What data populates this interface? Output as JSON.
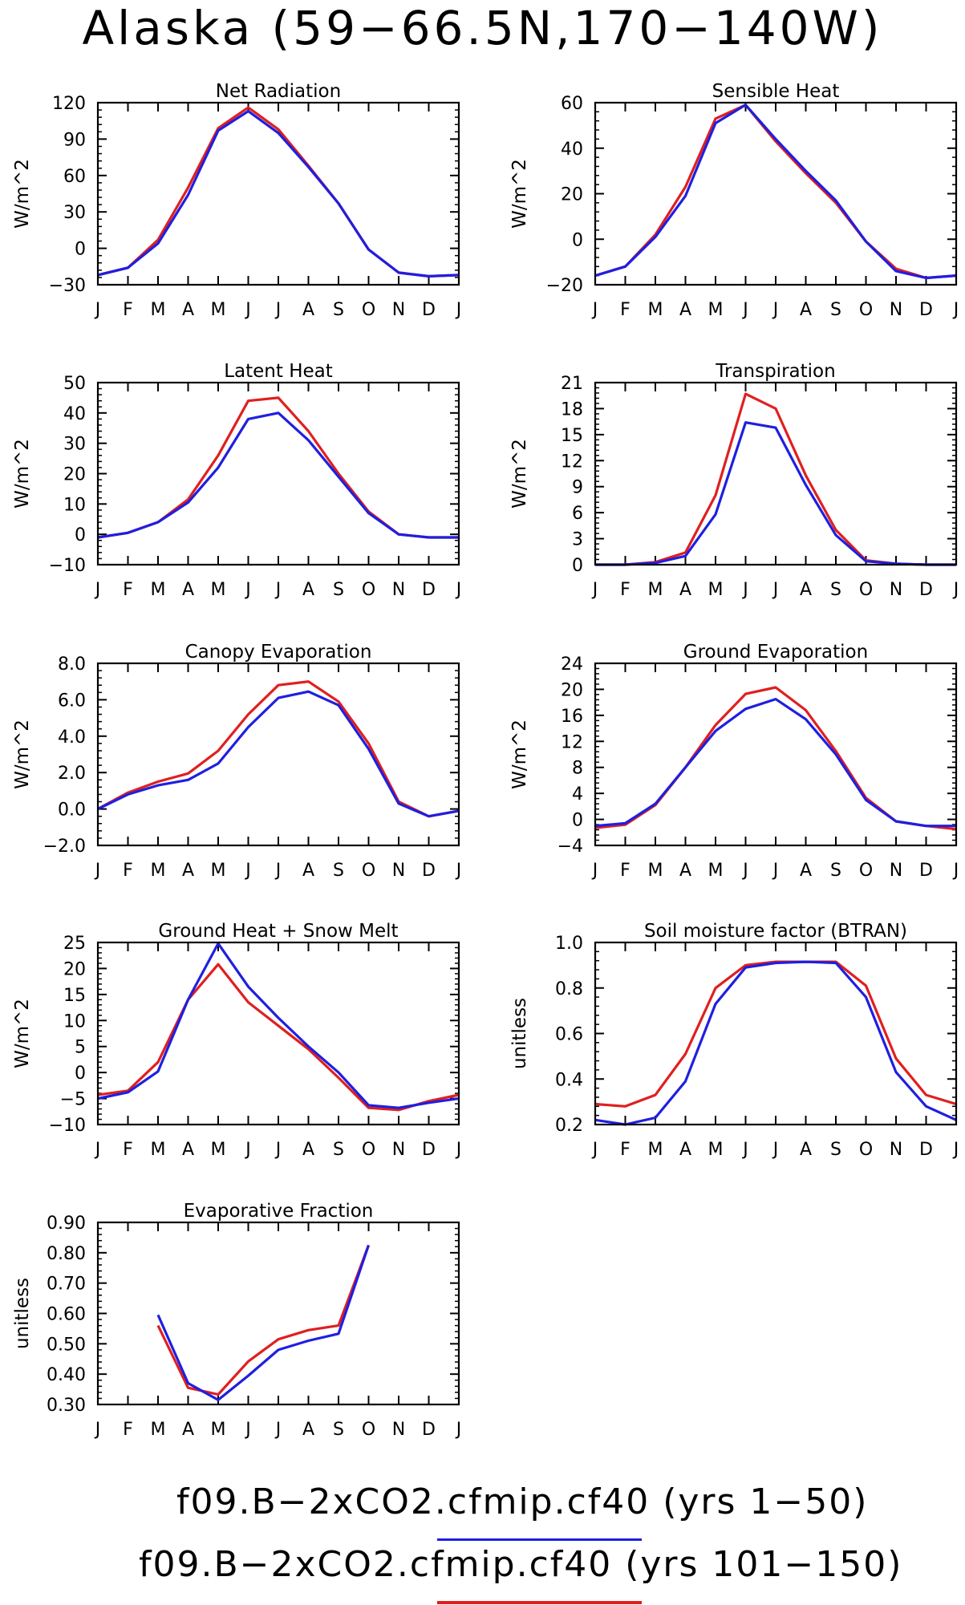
{
  "figure": {
    "title": "Alaska (59−66.5N,170−140W)",
    "legend": [
      {
        "label": "f09.B−2xCO2.cfmip.cf40 (yrs 1−50)",
        "color": "#1f1fe0"
      },
      {
        "label": "f09.B−2xCO2.cfmip.cf40 (yrs 101−150)",
        "color": "#e01f1f"
      }
    ],
    "colors": {
      "blue": "#1f1fe0",
      "red": "#e01f1f"
    }
  },
  "chart_data": [
    {
      "type": "line",
      "title": "Net Radiation",
      "ylabel": "W/m^2",
      "categories": [
        "J",
        "F",
        "M",
        "A",
        "M",
        "J",
        "J",
        "A",
        "S",
        "O",
        "N",
        "D",
        "J"
      ],
      "ylim": [
        -30,
        120
      ],
      "yticks": [
        "-30",
        "0",
        "30",
        "60",
        "90",
        "120"
      ],
      "series": [
        {
          "color": "red",
          "values": [
            -22,
            -16,
            7,
            50,
            99,
            116,
            98,
            68,
            37,
            -1,
            -20,
            -23,
            -22
          ]
        },
        {
          "color": "blue",
          "values": [
            -22,
            -16,
            4,
            44,
            97,
            113,
            95,
            67,
            37,
            -1,
            -20,
            -23,
            -22
          ]
        }
      ]
    },
    {
      "type": "line",
      "title": "Sensible Heat",
      "ylabel": "W/m^2",
      "categories": [
        "J",
        "F",
        "M",
        "A",
        "M",
        "J",
        "J",
        "A",
        "S",
        "O",
        "N",
        "D",
        "J"
      ],
      "ylim": [
        -20,
        60
      ],
      "yticks": [
        "-20",
        "0",
        "20",
        "40",
        "60"
      ],
      "series": [
        {
          "color": "red",
          "values": [
            -16,
            -12,
            2,
            23,
            53,
            59,
            43,
            29,
            16,
            -1,
            -13,
            -17,
            -16
          ]
        },
        {
          "color": "blue",
          "values": [
            -16,
            -12,
            1,
            19,
            51,
            59,
            44,
            30,
            17,
            -1,
            -14,
            -17,
            -16
          ]
        }
      ]
    },
    {
      "type": "line",
      "title": "Latent Heat",
      "ylabel": "W/m^2",
      "categories": [
        "J",
        "F",
        "M",
        "A",
        "M",
        "J",
        "J",
        "A",
        "S",
        "O",
        "N",
        "D",
        "J"
      ],
      "ylim": [
        -10,
        50
      ],
      "yticks": [
        "-10",
        "0",
        "10",
        "20",
        "30",
        "40",
        "50"
      ],
      "series": [
        {
          "color": "red",
          "values": [
            -1,
            0.5,
            4,
            11.5,
            26,
            44,
            45,
            34,
            20,
            7.5,
            0,
            -1,
            -1
          ]
        },
        {
          "color": "blue",
          "values": [
            -1,
            0.5,
            4,
            10.5,
            22,
            38,
            40,
            31,
            19,
            7,
            0,
            -1,
            -1
          ]
        }
      ]
    },
    {
      "type": "line",
      "title": "Transpiration",
      "ylabel": "W/m^2",
      "categories": [
        "J",
        "F",
        "M",
        "A",
        "M",
        "J",
        "J",
        "A",
        "S",
        "O",
        "N",
        "D",
        "J"
      ],
      "ylim": [
        0,
        21
      ],
      "yticks": [
        "0",
        "3",
        "6",
        "9",
        "12",
        "15",
        "18",
        "21"
      ],
      "series": [
        {
          "color": "red",
          "values": [
            0,
            0,
            0.3,
            1.4,
            8,
            19.7,
            18,
            10.3,
            4,
            0.5,
            0.1,
            0,
            0
          ]
        },
        {
          "color": "blue",
          "values": [
            0,
            0,
            0.2,
            1,
            5.8,
            16.4,
            15.8,
            9.2,
            3.4,
            0.4,
            0.1,
            0,
            0
          ]
        }
      ]
    },
    {
      "type": "line",
      "title": "Canopy Evaporation",
      "ylabel": "W/m^2",
      "categories": [
        "J",
        "F",
        "M",
        "A",
        "M",
        "J",
        "J",
        "A",
        "S",
        "O",
        "N",
        "D",
        "J"
      ],
      "ylim": [
        -2,
        8
      ],
      "yticks": [
        "-2.0",
        "0.0",
        "2.0",
        "4.0",
        "6.0",
        "8.0"
      ],
      "series": [
        {
          "color": "red",
          "values": [
            0,
            0.9,
            1.5,
            1.95,
            3.2,
            5.2,
            6.8,
            7.0,
            5.9,
            3.6,
            0.4,
            -0.4,
            -0.1
          ]
        },
        {
          "color": "blue",
          "values": [
            0,
            0.8,
            1.3,
            1.6,
            2.5,
            4.5,
            6.1,
            6.45,
            5.7,
            3.3,
            0.3,
            -0.4,
            -0.1
          ]
        }
      ]
    },
    {
      "type": "line",
      "title": "Ground Evaporation",
      "ylabel": "W/m^2",
      "categories": [
        "J",
        "F",
        "M",
        "A",
        "M",
        "J",
        "J",
        "A",
        "S",
        "O",
        "N",
        "D",
        "J"
      ],
      "ylim": [
        -4,
        24
      ],
      "yticks": [
        "-4",
        "0",
        "4",
        "8",
        "12",
        "16",
        "20",
        "24"
      ],
      "series": [
        {
          "color": "red",
          "values": [
            -1.3,
            -0.8,
            2.2,
            8.0,
            14.5,
            19.3,
            20.3,
            16.8,
            10.5,
            3.3,
            -0.3,
            -1.0,
            -1.5
          ]
        },
        {
          "color": "blue",
          "values": [
            -1.0,
            -0.6,
            2.4,
            8.0,
            13.6,
            17.0,
            18.5,
            15.4,
            10.0,
            3.0,
            -0.3,
            -1.0,
            -1.0
          ]
        }
      ]
    },
    {
      "type": "line",
      "title": "Ground Heat + Snow Melt",
      "ylabel": "W/m^2",
      "categories": [
        "J",
        "F",
        "M",
        "A",
        "M",
        "J",
        "J",
        "A",
        "S",
        "O",
        "N",
        "D",
        "J"
      ],
      "ylim": [
        -10,
        25
      ],
      "yticks": [
        "-10",
        "-5",
        "0",
        "5",
        "10",
        "15",
        "20",
        "25"
      ],
      "series": [
        {
          "color": "red",
          "values": [
            -4.3,
            -3.5,
            2,
            14,
            20.8,
            13.5,
            9,
            4.5,
            -1,
            -6.8,
            -7.2,
            -5.5,
            -4.3
          ]
        },
        {
          "color": "blue",
          "values": [
            -5.0,
            -3.8,
            0.2,
            14,
            24.8,
            16.5,
            10.5,
            5,
            0,
            -6.3,
            -6.8,
            -5.8,
            -5.0
          ]
        }
      ]
    },
    {
      "type": "line",
      "title": "Soil moisture factor (BTRAN)",
      "ylabel": "unitless",
      "categories": [
        "J",
        "F",
        "M",
        "A",
        "M",
        "J",
        "J",
        "A",
        "S",
        "O",
        "N",
        "D",
        "J"
      ],
      "ylim": [
        0.2,
        1.0
      ],
      "yticks": [
        "0.2",
        "0.4",
        "0.6",
        "0.8",
        "1.0"
      ],
      "series": [
        {
          "color": "red",
          "values": [
            0.29,
            0.28,
            0.33,
            0.51,
            0.8,
            0.9,
            0.915,
            0.915,
            0.915,
            0.81,
            0.49,
            0.33,
            0.29
          ]
        },
        {
          "color": "blue",
          "values": [
            0.22,
            0.2,
            0.23,
            0.39,
            0.73,
            0.89,
            0.91,
            0.915,
            0.91,
            0.76,
            0.43,
            0.28,
            0.22
          ]
        }
      ]
    },
    {
      "type": "line",
      "title": "Evaporative Fraction",
      "ylabel": "unitless",
      "categories": [
        "J",
        "F",
        "M",
        "A",
        "M",
        "J",
        "J",
        "A",
        "S",
        "O",
        "N",
        "D",
        "J"
      ],
      "ylim": [
        0.3,
        0.9
      ],
      "yticks": [
        "0.30",
        "0.40",
        "0.50",
        "0.60",
        "0.70",
        "0.80",
        "0.90"
      ],
      "series": [
        {
          "color": "red",
          "values": [
            null,
            null,
            0.56,
            0.355,
            0.333,
            0.442,
            0.515,
            0.545,
            0.56,
            0.825,
            null,
            null,
            null
          ]
        },
        {
          "color": "blue",
          "values": [
            null,
            null,
            0.595,
            0.37,
            0.315,
            0.395,
            0.48,
            0.51,
            0.533,
            0.825,
            null,
            null,
            null
          ]
        }
      ]
    }
  ]
}
